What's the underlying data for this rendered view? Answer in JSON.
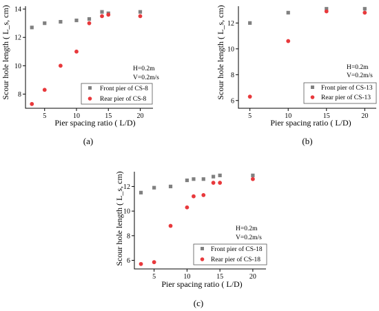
{
  "colors": {
    "front": "#808080",
    "rear": "#e8393c"
  },
  "chart_data": [
    {
      "id": "a",
      "panel_label": "(a)",
      "type": "scatter",
      "xlabel": "Pier spacing ratio ( L/D)",
      "ylabel": "Scour hole length ( L_s, cm)",
      "xlim": [
        2,
        22
      ],
      "ylim": [
        7,
        14.2
      ],
      "xticks": [
        5,
        10,
        15,
        20
      ],
      "yticks": [
        8,
        10,
        12,
        14
      ],
      "annotations": [
        "H=0.2m",
        "V=0.2m/s"
      ],
      "legend_position": "bottom-right",
      "series": [
        {
          "name": "Front pier of CS-8",
          "marker": "square",
          "x": [
            3,
            5,
            7.5,
            10,
            12,
            14,
            15,
            20
          ],
          "y": [
            12.7,
            13.0,
            13.1,
            13.2,
            13.3,
            13.8,
            13.7,
            13.8
          ]
        },
        {
          "name": "Rear pier of CS-8",
          "marker": "circle",
          "x": [
            3,
            5,
            7.5,
            10,
            12,
            14,
            15,
            20
          ],
          "y": [
            7.3,
            8.3,
            10.0,
            11.0,
            13.0,
            13.5,
            13.6,
            13.5
          ]
        }
      ]
    },
    {
      "id": "b",
      "panel_label": "(b)",
      "type": "scatter",
      "xlabel": "Pier spacing ratio ( L/D)",
      "ylabel": "Scour hole length ( L_s, cm)",
      "xlim": [
        3.5,
        21.5
      ],
      "ylim": [
        5.4,
        13.3
      ],
      "xticks": [
        5,
        10,
        15,
        20
      ],
      "yticks": [
        6,
        8,
        10,
        12
      ],
      "annotations": [
        "H=0.2m",
        "V=0.2m/s"
      ],
      "legend_position": "bottom-right",
      "series": [
        {
          "name": "Front pier of CS-13",
          "marker": "square",
          "x": [
            5,
            10,
            15,
            20
          ],
          "y": [
            12.0,
            12.8,
            13.1,
            13.1
          ]
        },
        {
          "name": "Rear pier of CS-13",
          "marker": "circle",
          "x": [
            5,
            10,
            15,
            20
          ],
          "y": [
            6.3,
            10.6,
            12.9,
            12.8
          ]
        }
      ]
    },
    {
      "id": "c",
      "panel_label": "(c)",
      "type": "scatter",
      "xlabel": "Pier spacing ratio ( L/D)",
      "ylabel": "Scour hole length ( L_s, cm)",
      "xlim": [
        2,
        22
      ],
      "ylim": [
        5.3,
        13.2
      ],
      "xticks": [
        5,
        10,
        15,
        20
      ],
      "yticks": [
        6,
        8,
        10,
        12
      ],
      "annotations": [
        "H=0.2m",
        "V=0.2m/s"
      ],
      "legend_position": "bottom-right",
      "series": [
        {
          "name": "Front pier of CS-18",
          "marker": "square",
          "x": [
            3,
            5,
            7.5,
            10,
            11,
            12.5,
            14,
            15,
            20
          ],
          "y": [
            11.5,
            11.9,
            12.0,
            12.5,
            12.6,
            12.6,
            12.8,
            12.9,
            12.9
          ]
        },
        {
          "name": "Rear pier of CS-18",
          "marker": "circle",
          "x": [
            3,
            5,
            7.5,
            10,
            11,
            12.5,
            14,
            15,
            20
          ],
          "y": [
            5.7,
            5.85,
            8.8,
            10.3,
            11.2,
            11.3,
            12.3,
            12.3,
            12.6
          ]
        }
      ]
    }
  ]
}
